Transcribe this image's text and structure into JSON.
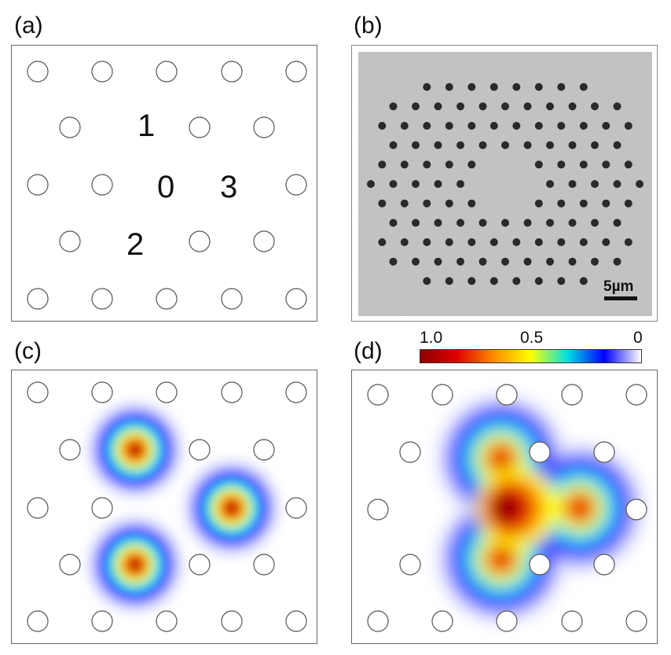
{
  "panels": {
    "a": {
      "label": "(a)",
      "site_labels": [
        {
          "text": "1"
        },
        {
          "text": "0"
        },
        {
          "text": "3"
        },
        {
          "text": "2"
        }
      ]
    },
    "b": {
      "label": "(b)",
      "scale_bar_text": "5µm"
    },
    "c": {
      "label": "(c)"
    },
    "d": {
      "label": "(d)"
    }
  },
  "colorbar": {
    "ticks": [
      "1.0",
      "0.5",
      "0"
    ],
    "colors": [
      "#8b0000",
      "#e00000",
      "#ff8c00",
      "#ffff00",
      "#00e0e0",
      "#0000ff",
      "#ffffff"
    ]
  }
}
